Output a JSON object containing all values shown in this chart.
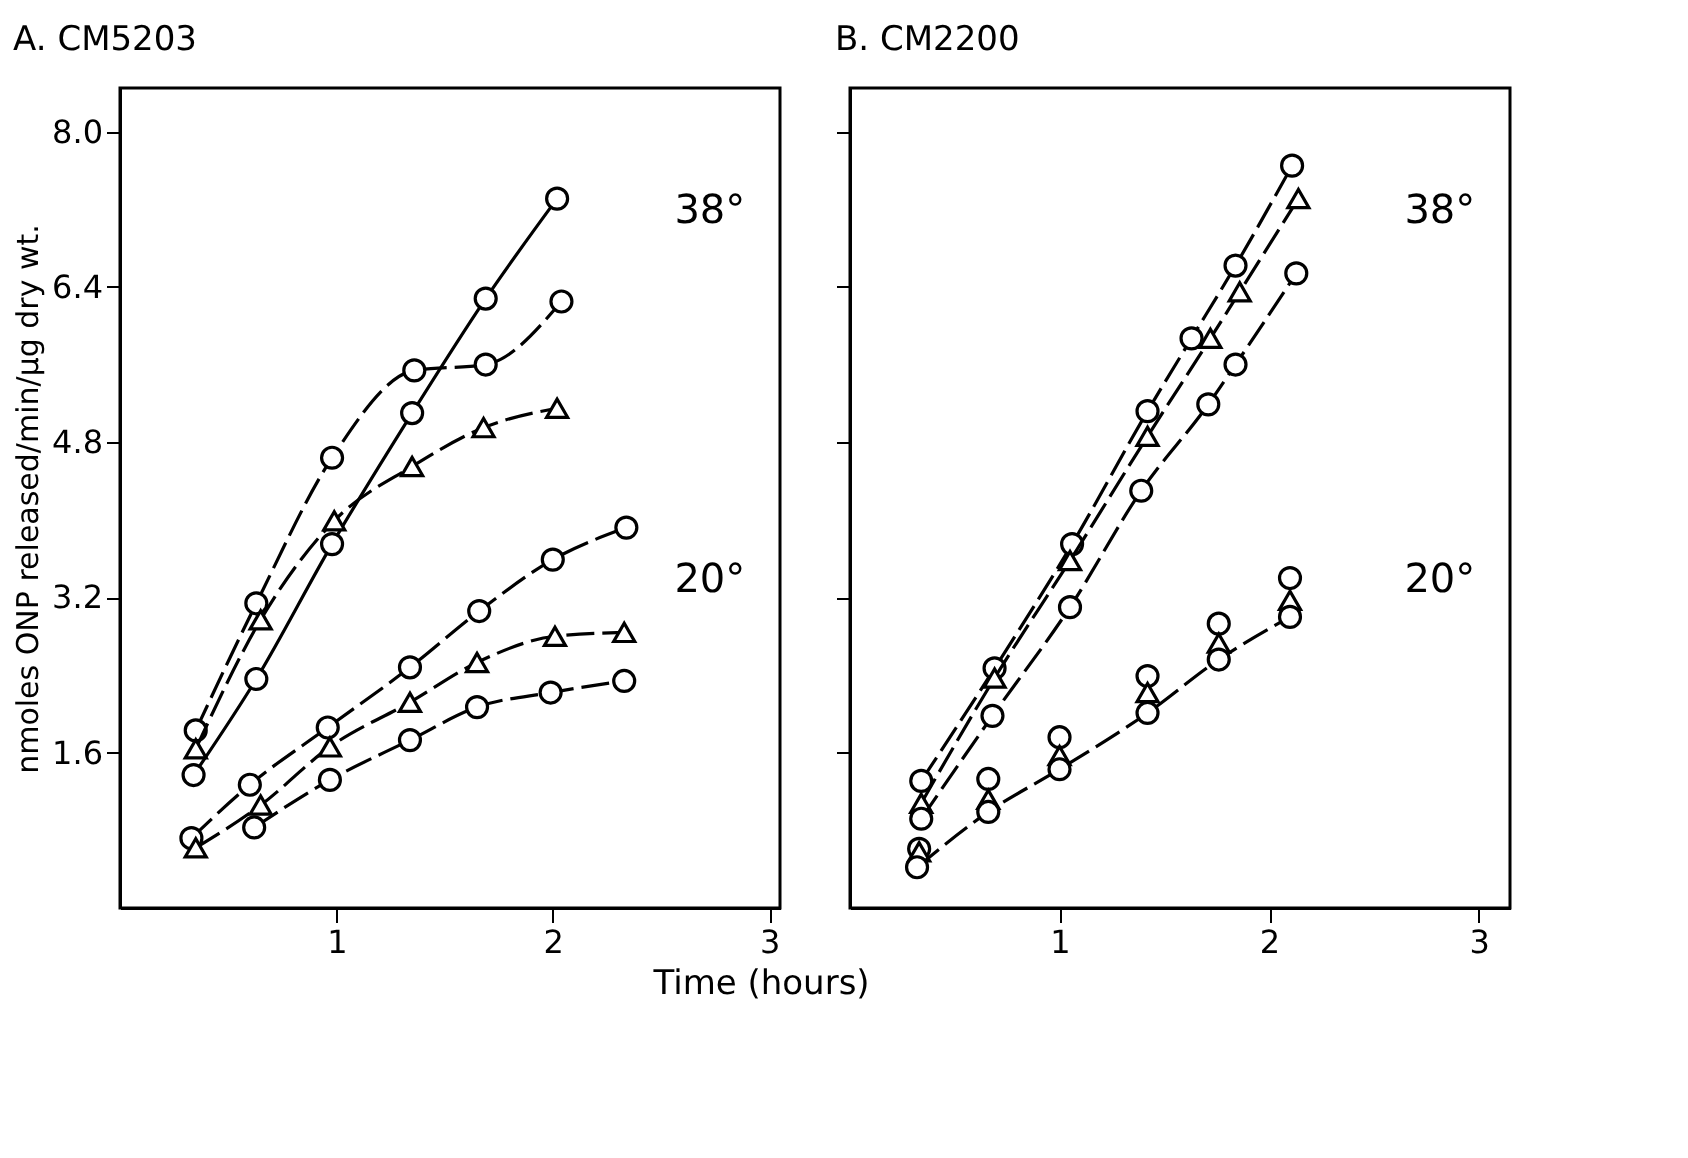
{
  "chart_data": [
    {
      "type": "line",
      "title": "A. CM5203",
      "xlabel": "Time (hours)",
      "ylabel": "nmoles ONP released/min/μg dry wt.",
      "xlim": [
        0,
        3.05
      ],
      "ylim": [
        0,
        8.45
      ],
      "xticks": [
        1,
        2,
        3
      ],
      "yticks": [
        1.6,
        3.2,
        4.8,
        6.4,
        {
          "value": 8,
          "label": "8.0"
        }
      ],
      "grid": false,
      "annotations": [
        "38°",
        "20°"
      ],
      "series": [
        {
          "color": "#000000",
          "marker": "circle",
          "line_style": "solid",
          "x": [
            0.34,
            0.63,
            0.98,
            1.35,
            1.69,
            2.02
          ],
          "values": [
            1.37,
            2.36,
            3.75,
            5.1,
            6.28,
            7.31
          ]
        },
        {
          "color": "#000000",
          "marker": "circle",
          "line_style": "dashed",
          "x": [
            0.35,
            0.63,
            0.98,
            1.36,
            1.69,
            2.04
          ],
          "values": [
            1.83,
            3.14,
            4.64,
            5.54,
            5.6,
            6.25
          ]
        },
        {
          "color": "#000000",
          "marker": "triangle",
          "line_style": "dashed",
          "x": [
            0.35,
            0.65,
            0.99,
            1.35,
            1.68,
            2.02
          ],
          "values": [
            1.64,
            2.97,
            3.99,
            4.55,
            4.95,
            5.15
          ]
        },
        {
          "color": "#000000",
          "marker": "circle",
          "line_style": "dashed",
          "x": [
            0.33,
            0.6,
            0.96,
            1.34,
            1.66,
            2.0,
            2.34
          ],
          "values": [
            0.72,
            1.27,
            1.86,
            2.48,
            3.06,
            3.59,
            3.92
          ]
        },
        {
          "color": "#000000",
          "marker": "triangle",
          "line_style": "dashed",
          "x": [
            0.35,
            0.65,
            0.97,
            1.34,
            1.65,
            2.01,
            2.33
          ],
          "values": [
            0.62,
            1.06,
            1.66,
            2.12,
            2.53,
            2.8,
            2.84
          ]
        },
        {
          "color": "#000000",
          "marker": "circle",
          "line_style": "dashed",
          "x": [
            0.62,
            0.97,
            1.34,
            1.65,
            1.99,
            2.33
          ],
          "values": [
            0.83,
            1.32,
            1.73,
            2.07,
            2.22,
            2.34
          ]
        }
      ]
    },
    {
      "type": "line",
      "title": "B. CM2200",
      "tick_labels": "x",
      "xlim": [
        0,
        3.15
      ],
      "ylim": [
        0,
        8.45
      ],
      "xticks": [
        1,
        2,
        3
      ],
      "yticks": [
        {
          "value": 1.6,
          "label": null
        },
        {
          "value": 3.2,
          "label": null
        },
        {
          "value": 4.8,
          "label": null
        },
        {
          "value": 6.4,
          "label": null
        },
        {
          "value": 8,
          "label": null
        }
      ],
      "grid": false,
      "annotations": [
        "38°",
        "20°"
      ],
      "series": [
        {
          "color": "#000000",
          "marker": "circle",
          "line_style": "dashed",
          "x": [
            0.34,
            0.69,
            1.06,
            1.42,
            1.63,
            1.84,
            2.11
          ],
          "values": [
            1.31,
            2.47,
            3.75,
            5.12,
            5.87,
            6.62,
            7.65
          ]
        },
        {
          "color": "#000000",
          "marker": "triangle",
          "line_style": "dashed",
          "x": [
            0.34,
            0.69,
            1.05,
            1.42,
            1.72,
            1.86,
            2.14
          ],
          "values": [
            1.08,
            2.37,
            3.58,
            4.86,
            5.87,
            6.35,
            7.31
          ]
        },
        {
          "color": "#000000",
          "marker": "circle",
          "line_style": "dashed",
          "x": [
            0.34,
            0.68,
            1.05,
            1.39,
            1.71,
            1.84,
            2.13
          ],
          "values": [
            0.92,
            1.98,
            3.1,
            4.3,
            5.19,
            5.6,
            6.54
          ]
        },
        {
          "type": "scatter",
          "color": "#000000",
          "marker": "circle",
          "x": [
            0.33,
            0.66,
            1.0,
            1.42,
            1.76,
            2.1
          ],
          "values": [
            0.61,
            1.33,
            1.76,
            2.39,
            2.93,
            3.4
          ]
        },
        {
          "type": "scatter",
          "color": "#000000",
          "marker": "triangle",
          "x": [
            0.33,
            0.66,
            1.0,
            1.42,
            1.76,
            2.1
          ],
          "values": [
            0.58,
            1.12,
            1.57,
            2.22,
            2.73,
            3.17
          ]
        },
        {
          "color": "#000000",
          "marker": "circle",
          "line_style": "dashed",
          "x": [
            0.32,
            0.66,
            1.0,
            1.42,
            1.76,
            2.1
          ],
          "values": [
            0.42,
            0.99,
            1.43,
            2.01,
            2.56,
            3.0
          ]
        }
      ]
    }
  ]
}
